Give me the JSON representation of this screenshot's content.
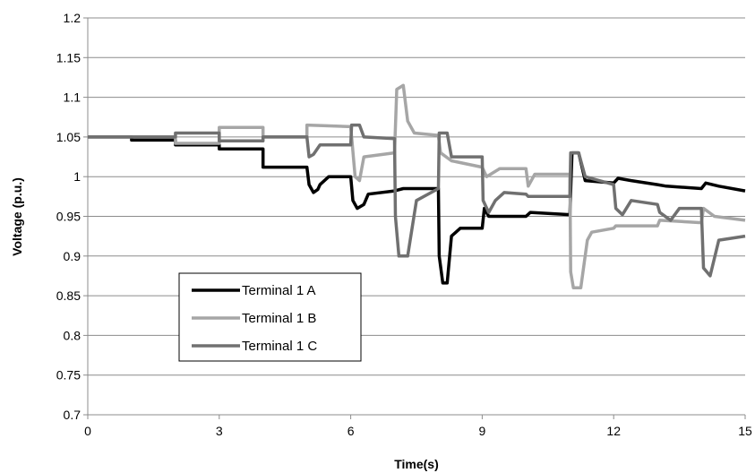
{
  "chart_data": {
    "type": "line",
    "xlabel": "Time(s)",
    "ylabel": "Voltage (p.u.)",
    "xlim": [
      0,
      15
    ],
    "ylim": [
      0.7,
      1.2
    ],
    "x_ticks": [
      "0",
      "3",
      "6",
      "9",
      "12",
      "15"
    ],
    "y_ticks": [
      "0.7",
      "0.75",
      "0.8",
      "0.85",
      "0.9",
      "0.95",
      "1",
      "1.05",
      "1.1",
      "1.15",
      "1.2"
    ],
    "grid": true,
    "legend_position": "bottom-left",
    "series": [
      {
        "name": "Terminal 1 A",
        "color": "#000000",
        "points": [
          [
            0,
            1.05
          ],
          [
            1,
            1.05
          ],
          [
            1,
            1.046
          ],
          [
            2,
            1.046
          ],
          [
            2,
            1.04
          ],
          [
            3,
            1.04
          ],
          [
            3,
            1.035
          ],
          [
            4,
            1.035
          ],
          [
            4,
            1.012
          ],
          [
            5,
            1.012
          ],
          [
            5.05,
            0.99
          ],
          [
            5.15,
            0.98
          ],
          [
            5.25,
            0.984
          ],
          [
            5.3,
            0.99
          ],
          [
            5.5,
            1.0
          ],
          [
            6,
            1.0
          ],
          [
            6.05,
            0.97
          ],
          [
            6.15,
            0.96
          ],
          [
            6.3,
            0.965
          ],
          [
            6.4,
            0.978
          ],
          [
            7,
            0.982
          ],
          [
            7.2,
            0.985
          ],
          [
            8,
            0.985
          ],
          [
            8.02,
            0.9
          ],
          [
            8.1,
            0.866
          ],
          [
            8.2,
            0.866
          ],
          [
            8.3,
            0.925
          ],
          [
            8.5,
            0.935
          ],
          [
            9,
            0.935
          ],
          [
            9.05,
            0.96
          ],
          [
            9.15,
            0.95
          ],
          [
            10,
            0.95
          ],
          [
            10.1,
            0.955
          ],
          [
            11,
            0.952
          ],
          [
            11.05,
            1.03
          ],
          [
            11.2,
            1.03
          ],
          [
            11.35,
            0.995
          ],
          [
            12,
            0.992
          ],
          [
            12.1,
            0.998
          ],
          [
            12.4,
            0.995
          ],
          [
            13,
            0.99
          ],
          [
            13.2,
            0.988
          ],
          [
            14,
            0.985
          ],
          [
            14.1,
            0.992
          ],
          [
            14.4,
            0.988
          ],
          [
            15,
            0.982
          ]
        ]
      },
      {
        "name": "Terminal 1 B",
        "color": "#a6a6a6",
        "points": [
          [
            0,
            1.05
          ],
          [
            2,
            1.05
          ],
          [
            2,
            1.042
          ],
          [
            3,
            1.042
          ],
          [
            3,
            1.062
          ],
          [
            4,
            1.062
          ],
          [
            4,
            1.05
          ],
          [
            5,
            1.05
          ],
          [
            5,
            1.065
          ],
          [
            6,
            1.063
          ],
          [
            6.1,
            1.0
          ],
          [
            6.2,
            0.995
          ],
          [
            6.3,
            1.025
          ],
          [
            7,
            1.03
          ],
          [
            7.05,
            1.11
          ],
          [
            7.2,
            1.115
          ],
          [
            7.3,
            1.07
          ],
          [
            7.45,
            1.055
          ],
          [
            8,
            1.052
          ],
          [
            8.05,
            1.03
          ],
          [
            8.3,
            1.02
          ],
          [
            9,
            1.012
          ],
          [
            9.1,
            1.0
          ],
          [
            9.4,
            1.01
          ],
          [
            10,
            1.01
          ],
          [
            10.05,
            0.988
          ],
          [
            10.2,
            1.003
          ],
          [
            11,
            1.003
          ],
          [
            11.02,
            0.88
          ],
          [
            11.08,
            0.86
          ],
          [
            11.25,
            0.86
          ],
          [
            11.4,
            0.92
          ],
          [
            11.5,
            0.93
          ],
          [
            12,
            0.935
          ],
          [
            12.05,
            0.938
          ],
          [
            13,
            0.938
          ],
          [
            13.05,
            0.945
          ],
          [
            14,
            0.942
          ],
          [
            14.05,
            0.96
          ],
          [
            14.3,
            0.95
          ],
          [
            15,
            0.945
          ]
        ]
      },
      {
        "name": "Terminal 1 C",
        "color": "#707070",
        "points": [
          [
            0,
            1.05
          ],
          [
            2,
            1.05
          ],
          [
            2,
            1.055
          ],
          [
            3,
            1.055
          ],
          [
            3,
            1.045
          ],
          [
            4,
            1.045
          ],
          [
            4,
            1.05
          ],
          [
            5,
            1.05
          ],
          [
            5.05,
            1.025
          ],
          [
            5.15,
            1.028
          ],
          [
            5.3,
            1.04
          ],
          [
            6,
            1.04
          ],
          [
            6.02,
            1.065
          ],
          [
            6.2,
            1.065
          ],
          [
            6.3,
            1.05
          ],
          [
            7,
            1.048
          ],
          [
            7.02,
            0.95
          ],
          [
            7.1,
            0.9
          ],
          [
            7.3,
            0.9
          ],
          [
            7.5,
            0.97
          ],
          [
            8,
            0.985
          ],
          [
            8.02,
            1.055
          ],
          [
            8.2,
            1.055
          ],
          [
            8.3,
            1.025
          ],
          [
            9,
            1.025
          ],
          [
            9.02,
            0.97
          ],
          [
            9.15,
            0.955
          ],
          [
            9.3,
            0.97
          ],
          [
            9.5,
            0.98
          ],
          [
            10,
            0.978
          ],
          [
            10.05,
            0.975
          ],
          [
            11,
            0.975
          ],
          [
            11.02,
            1.03
          ],
          [
            11.2,
            1.03
          ],
          [
            11.35,
            1.0
          ],
          [
            12,
            0.99
          ],
          [
            12.05,
            0.96
          ],
          [
            12.2,
            0.952
          ],
          [
            12.4,
            0.97
          ],
          [
            13,
            0.965
          ],
          [
            13.05,
            0.955
          ],
          [
            13.3,
            0.945
          ],
          [
            13.5,
            0.96
          ],
          [
            14,
            0.96
          ],
          [
            14.05,
            0.885
          ],
          [
            14.2,
            0.875
          ],
          [
            14.4,
            0.92
          ],
          [
            15,
            0.925
          ]
        ]
      }
    ]
  }
}
